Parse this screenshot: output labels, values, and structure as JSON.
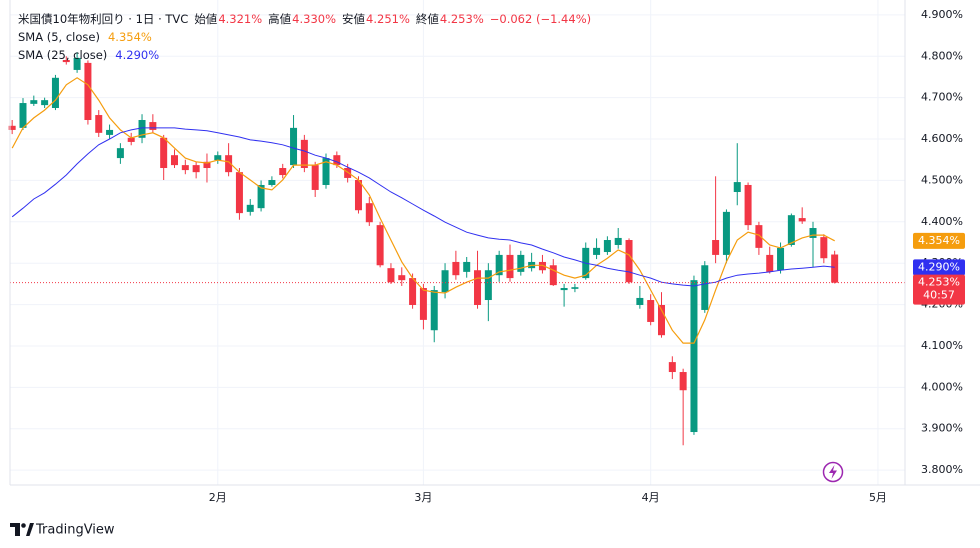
{
  "chart_data": {
    "type": "candlestick",
    "title": "米国債10年物利回り · 1日 · TVC",
    "ohlc": [
      {
        "label": "始値",
        "value": "4.321%"
      },
      {
        "label": "高値",
        "value": "4.330%"
      },
      {
        "label": "安値",
        "value": "4.251%"
      },
      {
        "label": "終値",
        "value": "4.253%"
      }
    ],
    "change": "−0.062 (−1.44%)",
    "countdown": "40:57",
    "up_color": "#089981",
    "down_color": "#f23645",
    "open": [
      4.632,
      4.627,
      4.685,
      4.682,
      4.675,
      4.791,
      4.767,
      4.784,
      4.658,
      4.61,
      4.554,
      4.603,
      4.603,
      4.641,
      4.603,
      4.561,
      4.537,
      4.537,
      4.545,
      4.549,
      4.561,
      4.52,
      4.424,
      4.433,
      4.489,
      4.53,
      4.537,
      4.598,
      4.537,
      4.489,
      4.561,
      4.53,
      4.501,
      4.445,
      4.392,
      4.288,
      4.271,
      4.264,
      4.24,
      4.138,
      4.23,
      4.303,
      4.279,
      4.283,
      4.211,
      4.271,
      4.32,
      4.279,
      4.288,
      4.303,
      4.295,
      4.235,
      4.238,
      4.264,
      4.32,
      4.327,
      4.344,
      4.356,
      4.199,
      4.211,
      4.199,
      4.061,
      4.037,
      3.892,
      4.187,
      4.356,
      4.32,
      4.472,
      4.489,
      4.392,
      4.32,
      4.283,
      4.344,
      4.409,
      4.361,
      4.363,
      4.321
    ],
    "high": [
      4.646,
      4.699,
      4.705,
      4.7,
      4.755,
      4.8,
      4.81,
      4.79,
      4.67,
      4.635,
      4.59,
      4.615,
      4.66,
      4.66,
      4.61,
      4.575,
      4.55,
      4.545,
      4.565,
      4.57,
      4.59,
      4.53,
      4.455,
      4.5,
      4.51,
      4.54,
      4.658,
      4.61,
      4.545,
      4.565,
      4.57,
      4.54,
      4.51,
      4.46,
      4.4,
      4.3,
      4.29,
      4.275,
      4.25,
      4.245,
      4.3,
      4.33,
      4.315,
      4.33,
      4.3,
      4.33,
      4.345,
      4.33,
      4.325,
      4.32,
      4.31,
      4.25,
      4.25,
      4.35,
      4.36,
      4.365,
      4.385,
      4.36,
      4.245,
      4.225,
      4.23,
      4.075,
      4.045,
      4.27,
      4.305,
      4.51,
      4.43,
      4.59,
      4.495,
      4.4,
      4.34,
      4.35,
      4.42,
      4.435,
      4.4,
      4.37,
      4.33
    ],
    "low": [
      4.612,
      4.622,
      4.68,
      4.675,
      4.67,
      4.78,
      4.76,
      4.635,
      4.605,
      4.6,
      4.54,
      4.585,
      4.59,
      4.615,
      4.501,
      4.53,
      4.515,
      4.505,
      4.495,
      4.54,
      4.51,
      4.405,
      4.415,
      4.425,
      4.485,
      4.505,
      4.53,
      4.52,
      4.46,
      4.48,
      4.53,
      4.495,
      4.42,
      4.39,
      4.29,
      4.25,
      4.245,
      4.19,
      4.14,
      4.109,
      4.215,
      4.26,
      4.265,
      4.19,
      4.16,
      4.255,
      4.255,
      4.27,
      4.28,
      4.275,
      4.245,
      4.195,
      4.23,
      4.26,
      4.31,
      4.32,
      4.335,
      4.25,
      4.19,
      4.15,
      4.12,
      4.02,
      3.86,
      3.885,
      4.18,
      4.3,
      4.3,
      4.44,
      4.38,
      4.32,
      4.275,
      4.275,
      4.34,
      4.395,
      4.29,
      4.3,
      4.251
    ],
    "close": [
      4.622,
      4.687,
      4.694,
      4.694,
      4.748,
      4.786,
      4.796,
      4.646,
      4.615,
      4.622,
      4.578,
      4.593,
      4.646,
      4.622,
      4.53,
      4.537,
      4.525,
      4.52,
      4.53,
      4.561,
      4.52,
      4.421,
      4.441,
      4.489,
      4.501,
      4.513,
      4.627,
      4.53,
      4.477,
      4.554,
      4.537,
      4.506,
      4.428,
      4.399,
      4.295,
      4.254,
      4.259,
      4.199,
      4.163,
      4.235,
      4.283,
      4.271,
      4.303,
      4.199,
      4.283,
      4.32,
      4.264,
      4.32,
      4.303,
      4.283,
      4.247,
      4.24,
      4.242,
      4.337,
      4.337,
      4.356,
      4.361,
      4.254,
      4.216,
      4.158,
      4.126,
      4.037,
      3.993,
      4.259,
      4.295,
      4.32,
      4.424,
      4.496,
      4.392,
      4.337,
      4.279,
      4.337,
      4.416,
      4.401,
      4.385,
      4.312,
      4.253
    ],
    "series": [
      {
        "name": "SMA (5, close)",
        "color": "#f59d0e",
        "value_label": "4.354%",
        "values": [
          4.578,
          4.627,
          4.651,
          4.67,
          4.694,
          4.731,
          4.748,
          4.731,
          4.694,
          4.651,
          4.622,
          4.603,
          4.61,
          4.615,
          4.603,
          4.578,
          4.554,
          4.545,
          4.542,
          4.549,
          4.545,
          4.52,
          4.501,
          4.482,
          4.477,
          4.501,
          4.537,
          4.537,
          4.537,
          4.545,
          4.537,
          4.52,
          4.501,
          4.465,
          4.409,
          4.356,
          4.303,
          4.264,
          4.235,
          4.23,
          4.228,
          4.242,
          4.254,
          4.264,
          4.264,
          4.279,
          4.283,
          4.288,
          4.295,
          4.295,
          4.283,
          4.271,
          4.264,
          4.271,
          4.295,
          4.312,
          4.332,
          4.32,
          4.283,
          4.235,
          4.187,
          4.138,
          4.107,
          4.107,
          4.163,
          4.235,
          4.303,
          4.356,
          4.375,
          4.368,
          4.344,
          4.337,
          4.349,
          4.361,
          4.368,
          4.368,
          4.354
        ]
      },
      {
        "name": "SMA (25, close)",
        "color": "#3030f0",
        "value_label": "4.290%",
        "values": [
          4.412,
          4.433,
          4.455,
          4.47,
          4.491,
          4.513,
          4.54,
          4.564,
          4.586,
          4.6,
          4.615,
          4.622,
          4.627,
          4.627,
          4.627,
          4.627,
          4.624,
          4.622,
          4.62,
          4.615,
          4.61,
          4.605,
          4.598,
          4.595,
          4.591,
          4.586,
          4.578,
          4.571,
          4.561,
          4.554,
          4.545,
          4.532,
          4.52,
          4.506,
          4.489,
          4.472,
          4.458,
          4.443,
          4.428,
          4.414,
          4.399,
          4.387,
          4.375,
          4.368,
          4.361,
          4.358,
          4.356,
          4.349,
          4.344,
          4.334,
          4.325,
          4.315,
          4.308,
          4.3,
          4.295,
          4.288,
          4.283,
          4.279,
          4.271,
          4.264,
          4.254,
          4.25,
          4.247,
          4.245,
          4.25,
          4.254,
          4.264,
          4.271,
          4.274,
          4.276,
          4.279,
          4.283,
          4.286,
          4.288,
          4.29,
          4.293,
          4.29
        ]
      }
    ],
    "ylim": [
      3.764,
      4.936
    ],
    "yticks": [
      {
        "value": 4.9,
        "label": "4.900%"
      },
      {
        "value": 4.8,
        "label": "4.800%"
      },
      {
        "value": 4.7,
        "label": "4.700%"
      },
      {
        "value": 4.6,
        "label": "4.600%"
      },
      {
        "value": 4.5,
        "label": "4.500%"
      },
      {
        "value": 4.4,
        "label": "4.400%"
      },
      {
        "value": 4.3,
        "label": "4.300%"
      },
      {
        "value": 4.2,
        "label": "4.200%"
      },
      {
        "value": 4.1,
        "label": "4.100%"
      },
      {
        "value": 4.0,
        "label": "4.000%"
      },
      {
        "value": 3.9,
        "label": "3.900%"
      },
      {
        "value": 3.8,
        "label": "3.800%"
      }
    ],
    "xlim": [
      -0.2,
      82.5
    ],
    "xticks": [
      {
        "value": 19,
        "label": "2月"
      },
      {
        "value": 38,
        "label": "3月"
      },
      {
        "value": 59,
        "label": "4月"
      },
      {
        "value": 80,
        "label": "5月"
      }
    ],
    "grid": true
  },
  "footer": {
    "brand": "TradingView"
  }
}
